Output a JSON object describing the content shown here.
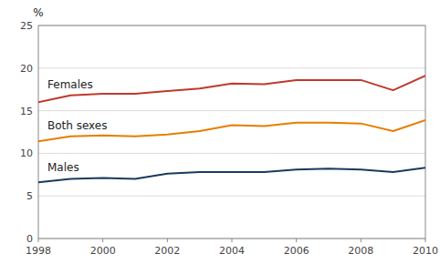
{
  "chart_data": {
    "type": "line",
    "ylabel": "%",
    "x": [
      1998,
      1999,
      2000,
      2001,
      2002,
      2003,
      2004,
      2005,
      2006,
      2007,
      2008,
      2009,
      2010
    ],
    "series": [
      {
        "name": "Females",
        "color": "#c0392b",
        "values": [
          16.0,
          16.8,
          17.0,
          17.0,
          17.3,
          17.6,
          18.2,
          18.1,
          18.6,
          18.6,
          18.6,
          17.4,
          19.1
        ]
      },
      {
        "name": "Both sexes",
        "color": "#e67e00",
        "values": [
          11.4,
          12.0,
          12.1,
          12.0,
          12.2,
          12.6,
          13.3,
          13.2,
          13.6,
          13.6,
          13.5,
          12.6,
          13.9
        ]
      },
      {
        "name": "Males",
        "color": "#1a3a5c",
        "values": [
          6.6,
          7.0,
          7.1,
          7.0,
          7.6,
          7.8,
          7.8,
          7.8,
          8.1,
          8.2,
          8.1,
          7.8,
          8.3
        ]
      }
    ],
    "xlim": [
      1998,
      2010
    ],
    "xticks": [
      1998,
      2000,
      2002,
      2004,
      2006,
      2008,
      2010
    ],
    "ylim": [
      0,
      25
    ],
    "yticks": [
      0,
      5,
      10,
      15,
      20,
      25
    ],
    "grid": true
  }
}
